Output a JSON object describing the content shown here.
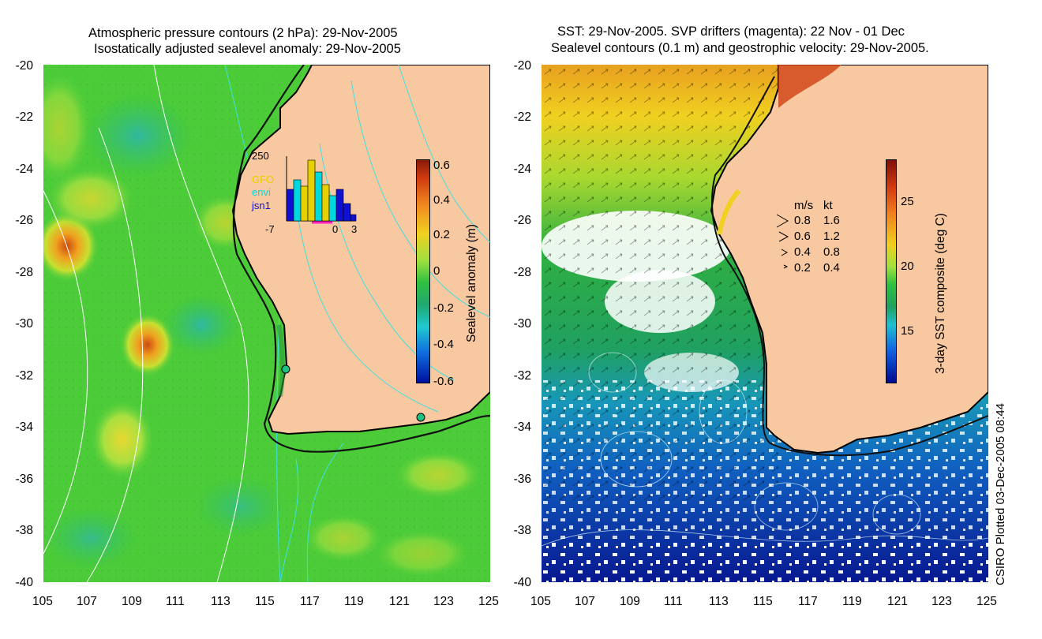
{
  "left_panel": {
    "title_line1": "Atmospheric pressure contours (2 hPa): 29-Nov-2005",
    "title_line2": "Isostatically adjusted sealevel anomaly: 29-Nov-2005",
    "colorbar_label": "Sealevel anomaly (m)",
    "colorbar_ticks": [
      "0.6",
      "0.4",
      "0.2",
      "0",
      "-0.2",
      "-0.4",
      "-0.6"
    ],
    "inset": {
      "ymax_label": "250",
      "x_labels": [
        "-7",
        "0",
        "3"
      ],
      "legend": [
        "GFO",
        "envi",
        "jsn1"
      ],
      "legend_colors": [
        "#e8d000",
        "#00d8e0",
        "#1010d0"
      ]
    }
  },
  "right_panel": {
    "title_line1": "SST: 29-Nov-2005. SVP drifters (magenta): 22 Nov - 01 Dec",
    "title_line2": "Sealevel contours (0.1 m) and geostrophic velocity: 29-Nov-2005.",
    "colorbar_label": "3-day SST composite (deg C)",
    "colorbar_ticks": [
      "25",
      "20",
      "15"
    ],
    "velocity_legend": {
      "header_ms": "m/s",
      "header_kt": "kt",
      "rows": [
        {
          "ms": "0.8",
          "kt": "1.6"
        },
        {
          "ms": "0.6",
          "kt": "1.2"
        },
        {
          "ms": "0.4",
          "kt": "0.8"
        },
        {
          "ms": "0.2",
          "kt": "0.4"
        }
      ]
    }
  },
  "lat_ticks": [
    "-20",
    "-22",
    "-24",
    "-26",
    "-28",
    "-30",
    "-32",
    "-34",
    "-36",
    "-38",
    "-40"
  ],
  "lon_ticks": [
    "105",
    "107",
    "109",
    "111",
    "113",
    "115",
    "117",
    "119",
    "121",
    "123",
    "125"
  ],
  "footer": "CSIRO Plotted 03-Dec-2005 08:44",
  "colors": {
    "land": "#f8c8a0",
    "ocean_green": "#33cc33",
    "coast": "#000000",
    "contour_cyan": "#40e0e0"
  }
}
